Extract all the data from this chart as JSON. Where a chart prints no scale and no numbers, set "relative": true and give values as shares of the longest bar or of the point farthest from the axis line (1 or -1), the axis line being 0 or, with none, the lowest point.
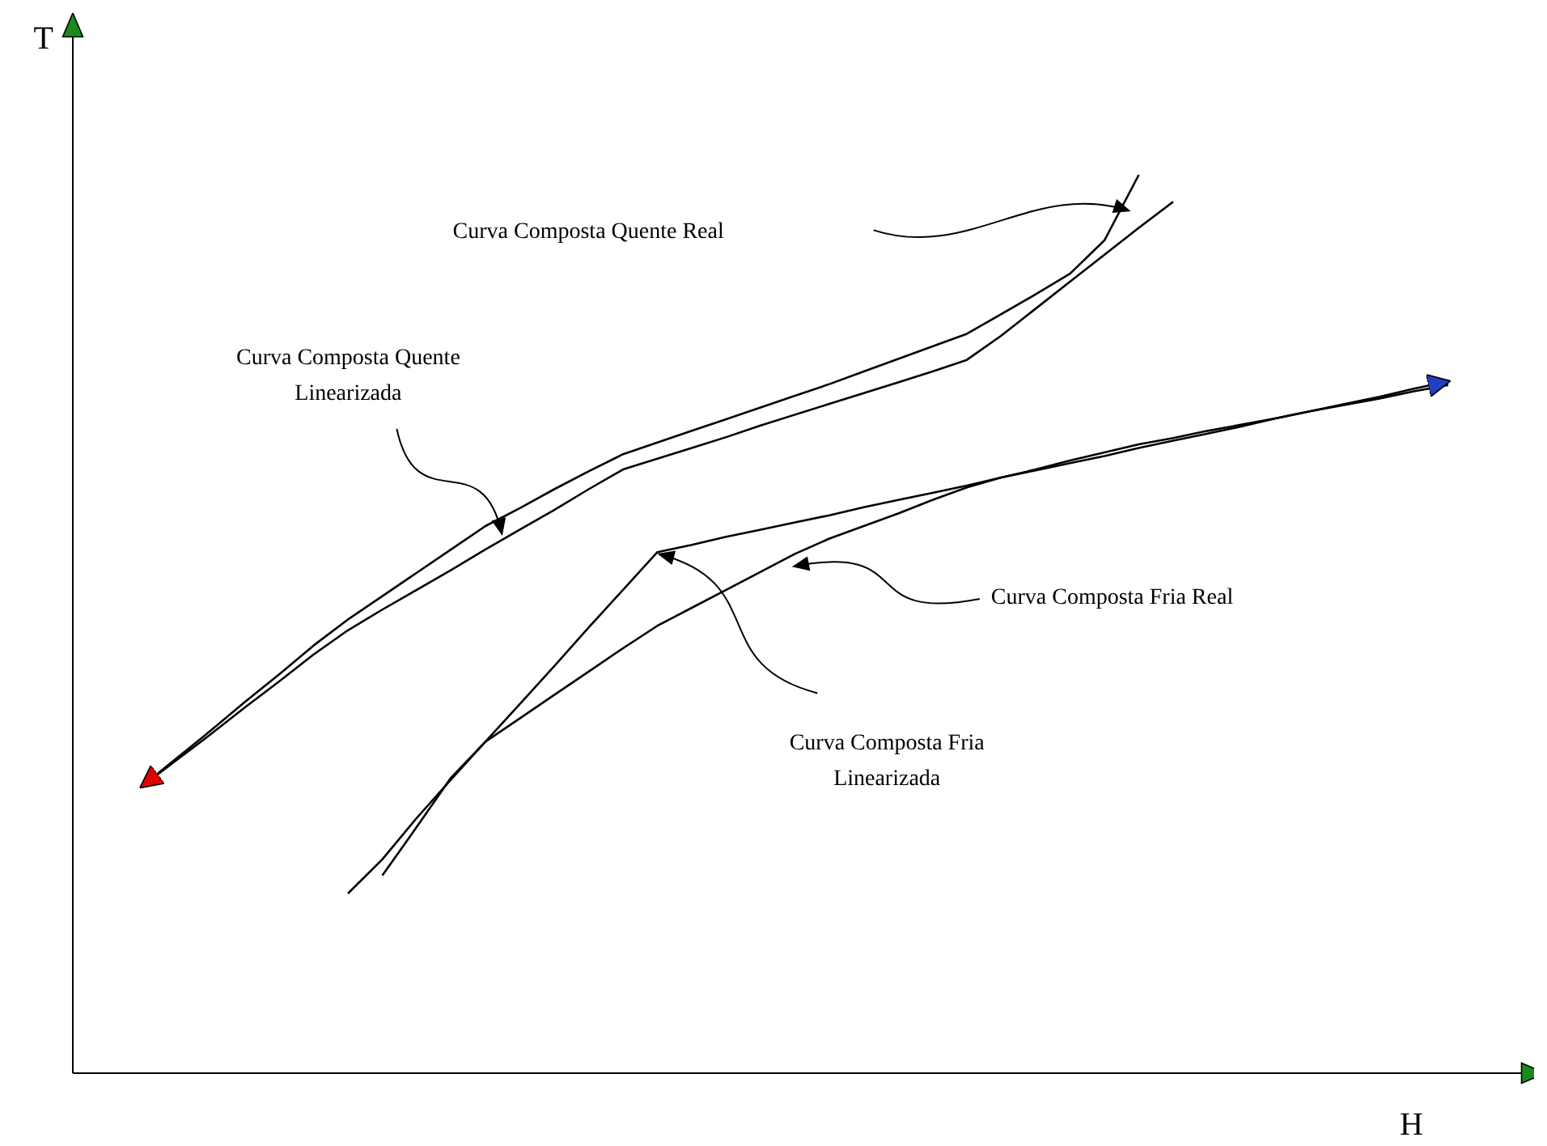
{
  "chart_data": {
    "type": "line",
    "relative": true,
    "xlabel": "H",
    "ylabel": "T",
    "marker": "none",
    "line_style": "solid",
    "categories": [
      null,
      null,
      null,
      null,
      null,
      null,
      null,
      null,
      null,
      null,
      null,
      null,
      null,
      null,
      null,
      null,
      null,
      null,
      null,
      null,
      null,
      null,
      null,
      null,
      null,
      null,
      null,
      null,
      null,
      null,
      null,
      null,
      null,
      null,
      null,
      null,
      null,
      null,
      null,
      null,
      null
    ],
    "series": [
      {
        "color": "#000000",
        "values": [
          null,
          null,
          0.319,
          0.35,
          0.381,
          0.413,
          0.444,
          0.476,
          0.505,
          0.531,
          0.557,
          0.583,
          0.609,
          0.629,
          0.65,
          0.67,
          0.689,
          0.702,
          0.715,
          0.728,
          0.741,
          0.754,
          0.767,
          0.781,
          0.795,
          0.809,
          0.823,
          0.845,
          0.867,
          0.89,
          0.927,
          1.0,
          null,
          null,
          null,
          null,
          null,
          null,
          null,
          null,
          null
        ]
      },
      {
        "color": "#000000",
        "values": [
          null,
          null,
          0.319,
          0.348,
          0.377,
          0.407,
          0.436,
          0.466,
          0.493,
          0.516,
          0.538,
          0.56,
          0.583,
          0.605,
          0.627,
          0.65,
          0.672,
          0.684,
          0.696,
          0.708,
          0.721,
          0.733,
          0.745,
          0.757,
          0.769,
          0.781,
          0.794,
          0.821,
          0.851,
          0.881,
          0.911,
          0.941,
          0.97,
          null,
          null,
          null,
          null,
          null,
          null,
          null,
          null
        ]
      },
      {
        "color": "#000000",
        "values": [
          null,
          null,
          null,
          null,
          null,
          null,
          null,
          null,
          null,
          0.22,
          0.274,
          0.329,
          0.369,
          0.395,
          0.421,
          0.447,
          0.473,
          0.498,
          0.518,
          0.538,
          0.558,
          0.578,
          0.595,
          0.609,
          0.623,
          0.638,
          0.652,
          0.663,
          0.672,
          0.682,
          0.691,
          0.7,
          0.707,
          0.715,
          0.722,
          0.729,
          0.737,
          0.744,
          0.751,
          0.759,
          0.766
        ]
      },
      {
        "color": "#000000",
        "values": [
          null,
          null,
          null,
          null,
          null,
          null,
          null,
          null,
          0.2,
          0.238,
          0.284,
          0.327,
          0.369,
          0.411,
          0.453,
          0.496,
          0.538,
          0.58,
          0.588,
          0.597,
          0.605,
          0.613,
          0.621,
          0.63,
          0.638,
          0.646,
          0.654,
          0.663,
          0.671,
          0.679,
          0.687,
          0.696,
          0.704,
          0.712,
          0.72,
          0.729,
          0.737,
          0.745,
          0.753,
          0.762,
          0.77
        ]
      }
    ],
    "annotations": [
      "Curva Composta Quente Real",
      "Curva Composta Quente Linearizada",
      "Curva Composta Fria Real",
      "Curva Composta Fria Linearizada"
    ]
  }
}
